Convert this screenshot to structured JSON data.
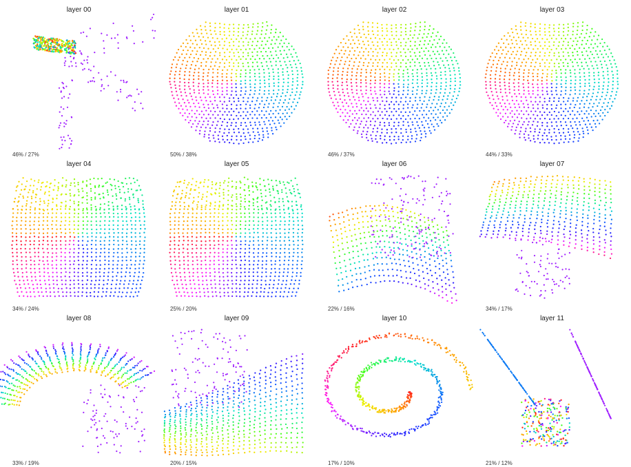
{
  "panels": [
    {
      "title": "layer 00",
      "stats": "46% / 27%",
      "shape": "layer00"
    },
    {
      "title": "layer 01",
      "stats": "50% / 38%",
      "shape": "ball"
    },
    {
      "title": "layer 02",
      "stats": "46% / 37%",
      "shape": "ball"
    },
    {
      "title": "layer 03",
      "stats": "44% / 33%",
      "shape": "ball"
    },
    {
      "title": "layer 04",
      "stats": "34% / 24%",
      "shape": "box"
    },
    {
      "title": "layer 05",
      "stats": "25% / 20%",
      "shape": "box"
    },
    {
      "title": "layer 06",
      "stats": "22% / 16%",
      "shape": "sheet_tilted"
    },
    {
      "title": "layer 07",
      "stats": "34% / 17%",
      "shape": "bent_sheet"
    },
    {
      "title": "layer 08",
      "stats": "33% / 19%",
      "shape": "arc_sheet"
    },
    {
      "title": "layer 09",
      "stats": "20% / 15%",
      "shape": "fan_sheet"
    },
    {
      "title": "layer 10",
      "stats": "17% / 10%",
      "shape": "spiral"
    },
    {
      "title": "layer 11",
      "stats": "21% / 12%",
      "shape": "collapsed"
    }
  ],
  "colors": {
    "rainbow": [
      "#ff2020",
      "#ff9a00",
      "#f0f000",
      "#40ff20",
      "#00e0c8",
      "#1060ff",
      "#3020ff",
      "#ff20ff"
    ],
    "outlier": "#a020ff"
  }
}
